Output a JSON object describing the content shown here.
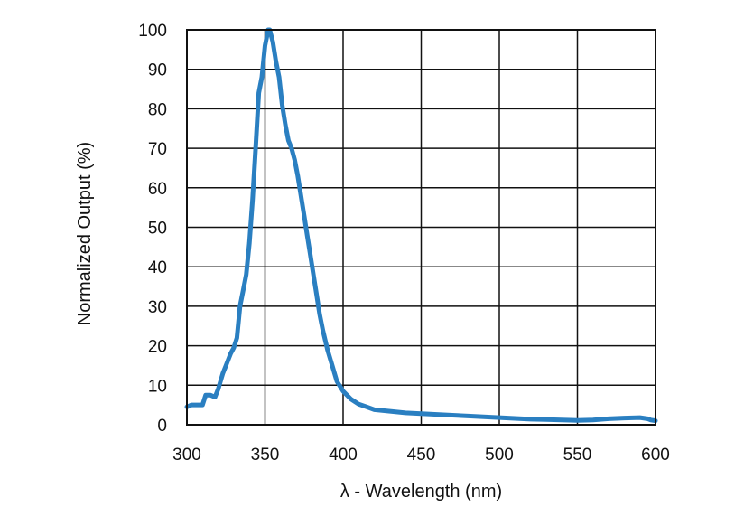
{
  "chart_data": {
    "type": "line",
    "title": "",
    "xlabel": "λ - Wavelength (nm)",
    "ylabel": "Normalized Output (%)",
    "xlim": [
      300,
      600
    ],
    "ylim": [
      0,
      100
    ],
    "x_ticks": [
      "300",
      "350",
      "400",
      "450",
      "500",
      "550",
      "600"
    ],
    "y_ticks": [
      "0",
      "10",
      "20",
      "30",
      "40",
      "50",
      "60",
      "70",
      "80",
      "90",
      "100"
    ],
    "grid": true,
    "line_color": "#2a7fc1",
    "series": [
      {
        "x": [
          300,
          303,
          306,
          310,
          312,
          315,
          318,
          320,
          323,
          325,
          328,
          330,
          332,
          334,
          336,
          338,
          340,
          342,
          344,
          346,
          348,
          350,
          352,
          353,
          355,
          357,
          359,
          361,
          363,
          365,
          367,
          369,
          371,
          373,
          375,
          377,
          379,
          381,
          383,
          385,
          387,
          390,
          393,
          396,
          400,
          405,
          410,
          415,
          420,
          430,
          440,
          450,
          460,
          470,
          480,
          490,
          500,
          510,
          520,
          530,
          540,
          550,
          560,
          570,
          580,
          590,
          595,
          597,
          600
        ],
        "y": [
          4.5,
          5,
          5,
          5,
          7.5,
          7.5,
          7,
          9,
          13,
          15,
          18,
          19.5,
          22,
          30,
          34,
          38,
          46,
          57,
          70,
          84,
          88,
          96,
          100,
          100,
          97,
          92,
          88,
          81,
          76,
          72,
          70,
          67,
          63,
          58,
          53,
          48,
          43,
          38,
          33,
          28,
          24,
          19,
          15,
          11,
          8.5,
          6.5,
          5.2,
          4.5,
          3.8,
          3.4,
          3.0,
          2.8,
          2.6,
          2.4,
          2.2,
          2.0,
          1.8,
          1.6,
          1.4,
          1.3,
          1.2,
          1.1,
          1.2,
          1.5,
          1.7,
          1.8,
          1.5,
          1.2,
          1.0
        ]
      }
    ]
  }
}
